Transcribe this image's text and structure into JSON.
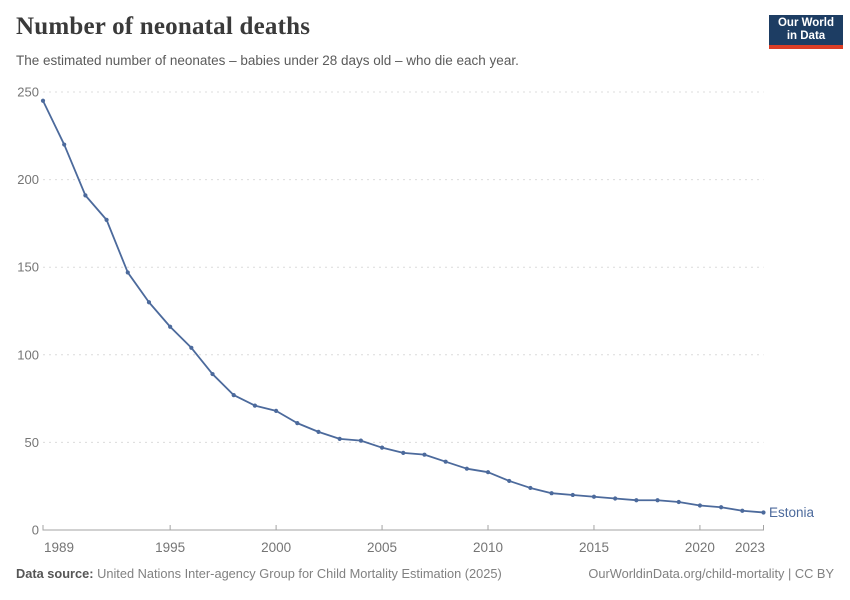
{
  "header": {
    "title": "Number of neonatal deaths",
    "subtitle": "The estimated number of neonates – babies under 28 days old – who die each year."
  },
  "logo": {
    "line1": "Our World",
    "line2": "in Data",
    "bg_color": "#1d3d63",
    "bar_color": "#dc3e26"
  },
  "chart_data": {
    "type": "line",
    "title": "Number of neonatal deaths",
    "x": [
      1989,
      1990,
      1991,
      1992,
      1993,
      1994,
      1995,
      1996,
      1997,
      1998,
      1999,
      2000,
      2001,
      2002,
      2003,
      2004,
      2005,
      2006,
      2007,
      2008,
      2009,
      2010,
      2011,
      2012,
      2013,
      2014,
      2015,
      2016,
      2017,
      2018,
      2019,
      2020,
      2021,
      2022,
      2023
    ],
    "series": [
      {
        "name": "Estonia",
        "color": "#4c6a9c",
        "values": [
          245,
          220,
          191,
          177,
          147,
          130,
          116,
          104,
          89,
          77,
          71,
          68,
          61,
          56,
          52,
          51,
          47,
          44,
          43,
          39,
          35,
          33,
          28,
          24,
          21,
          20,
          19,
          18,
          17,
          17,
          16,
          14,
          13,
          11,
          10
        ]
      }
    ],
    "xlabel": "",
    "ylabel": "",
    "ylim": [
      0,
      250
    ],
    "xlim": [
      1989,
      2023
    ],
    "yticks": [
      0,
      50,
      100,
      150,
      200,
      250
    ],
    "xticks": [
      1989,
      1995,
      2000,
      2005,
      2010,
      2015,
      2020,
      2023
    ],
    "grid": "horizontal-dashed",
    "legend_position": "end-of-line",
    "entity_label": "Estonia"
  },
  "footer": {
    "source_label": "Data source:",
    "source_text": " United Nations Inter-agency Group for Child Mortality Estimation (2025)",
    "rights": "OurWorldinData.org/child-mortality | CC BY"
  },
  "colors": {
    "line": "#4c6a9c",
    "grid": "#dcdcdc",
    "axis": "#a3a3a3",
    "tick_label": "#757575"
  }
}
